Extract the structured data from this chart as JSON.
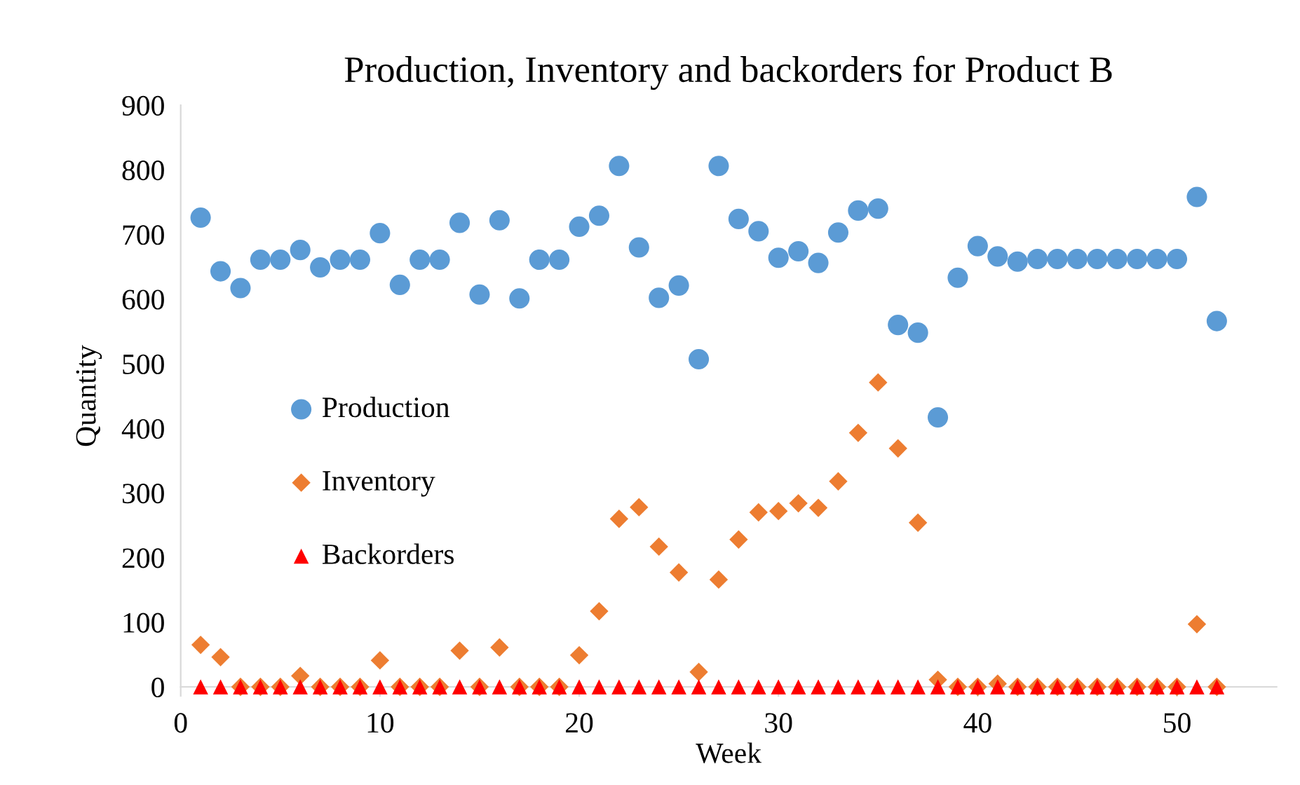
{
  "chart_data": {
    "type": "scatter",
    "title": "Production, Inventory and backorders for Product B",
    "xlabel": "Week",
    "ylabel": "Quantity",
    "x": [
      1,
      2,
      3,
      4,
      5,
      6,
      7,
      8,
      9,
      10,
      11,
      12,
      13,
      14,
      15,
      16,
      17,
      18,
      19,
      20,
      21,
      22,
      23,
      24,
      25,
      26,
      27,
      28,
      29,
      30,
      31,
      32,
      33,
      34,
      35,
      36,
      37,
      38,
      39,
      40,
      41,
      42,
      43,
      44,
      45,
      46,
      47,
      48,
      49,
      50,
      51,
      52
    ],
    "series": [
      {
        "name": "Production",
        "color": "#5b9bd5",
        "marker": "circle",
        "values": [
          726,
          643,
          617,
          661,
          661,
          676,
          649,
          661,
          661,
          702,
          622,
          661,
          661,
          718,
          607,
          722,
          601,
          661,
          661,
          712,
          729,
          806,
          680,
          602,
          621,
          507,
          806,
          724,
          705,
          664,
          674,
          656,
          703,
          737,
          740,
          560,
          548,
          417,
          633,
          682,
          666,
          658,
          662,
          662,
          662,
          662,
          662,
          662,
          662,
          662,
          758,
          566
        ]
      },
      {
        "name": "Inventory",
        "color": "#ed7d31",
        "marker": "diamond",
        "values": [
          65,
          46,
          0,
          0,
          0,
          17,
          0,
          0,
          0,
          41,
          0,
          0,
          0,
          56,
          0,
          61,
          0,
          0,
          0,
          49,
          117,
          260,
          278,
          217,
          177,
          23,
          166,
          228,
          270,
          272,
          284,
          277,
          318,
          393,
          471,
          369,
          254,
          11,
          0,
          0,
          5,
          0,
          0,
          0,
          0,
          0,
          0,
          0,
          0,
          0,
          97,
          0
        ]
      },
      {
        "name": "Backorders",
        "color": "#ff0000",
        "marker": "triangle",
        "values": [
          0,
          0,
          0,
          0,
          0,
          0,
          0,
          0,
          0,
          0,
          0,
          0,
          0,
          0,
          0,
          0,
          0,
          0,
          0,
          0,
          0,
          0,
          0,
          0,
          0,
          0,
          0,
          0,
          0,
          0,
          0,
          0,
          0,
          0,
          0,
          0,
          0,
          0,
          0,
          0,
          0,
          0,
          0,
          0,
          0,
          0,
          0,
          0,
          0,
          0,
          0,
          0
        ]
      }
    ],
    "xlim": [
      0,
      55
    ],
    "xticks": [
      0,
      10,
      20,
      30,
      40,
      50
    ],
    "ylim": [
      0,
      900
    ],
    "yticks": [
      0,
      100,
      200,
      300,
      400,
      500,
      600,
      700,
      800,
      900
    ],
    "grid": false,
    "legend": "left"
  }
}
